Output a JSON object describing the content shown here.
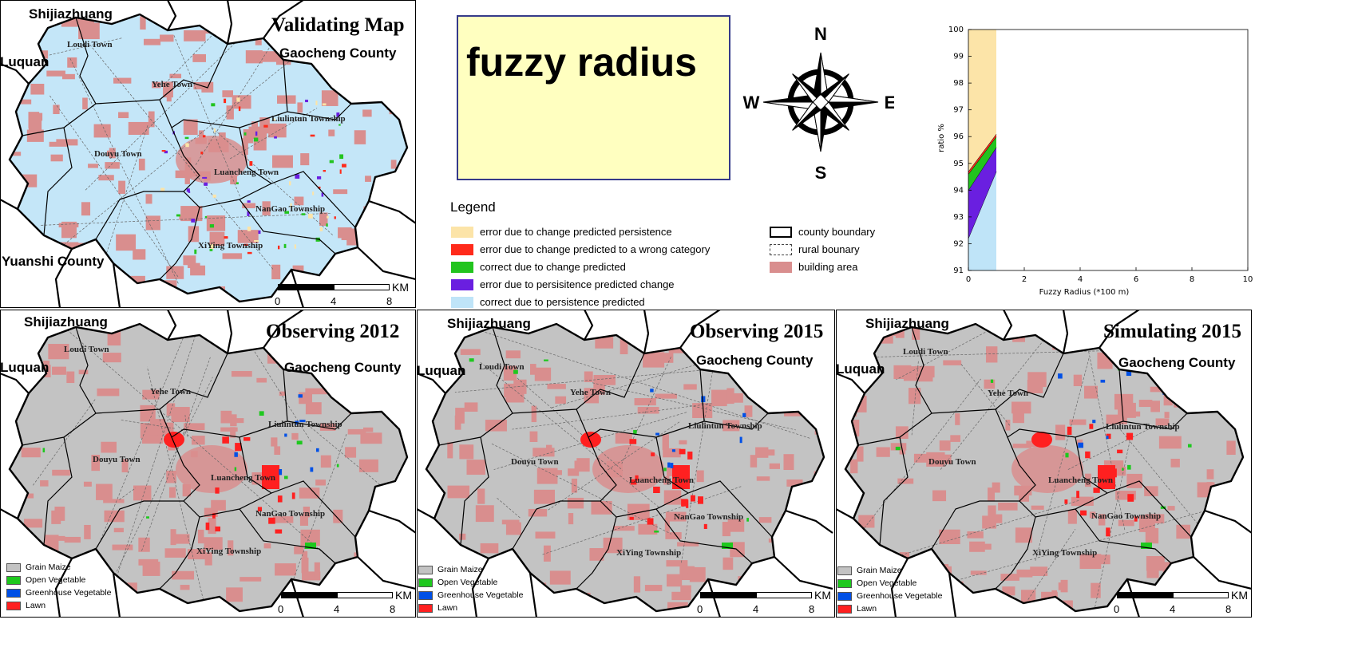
{
  "colors": {
    "persistence_light": "#c4e6f8",
    "grain_gray": "#c3c3c3",
    "building": "#d98e8e",
    "error_persistence_pred": "#fce4a8",
    "error_wrong_category": "#ff2a1a",
    "correct_change": "#22c41e",
    "error_persistence_change": "#6a1fe0",
    "correct_persistence": "#bfe4f8",
    "open_vegetable": "#1ec81e",
    "greenhouse_vegetable": "#0050e6",
    "lawn": "#ff2020"
  },
  "panels": [
    {
      "id": "validating",
      "title": "Validating Map",
      "subtitle": "Gaocheng County",
      "places": [
        "Shijiazhuang",
        "Luquan",
        "Yuanshi County"
      ],
      "towns": [
        "Loudi Town",
        "Yehe Town",
        "Liulintun Township",
        "Douyu Town",
        "Luancheng Town",
        "NanGao Township",
        "XiYing Township"
      ],
      "scale": {
        "ticks": [
          "0",
          "4",
          "8"
        ],
        "unit": "KM"
      }
    },
    {
      "id": "obs2012",
      "title": "Observing 2012",
      "subtitle": "Gaocheng County",
      "places": [
        "Shijiazhuang",
        "Luquan"
      ],
      "towns": [
        "Loudi Town",
        "Yehe Town",
        "Liulintun Township",
        "Douyu Town",
        "Luancheng Town",
        "NanGao Township",
        "XiYing Township"
      ],
      "scale": {
        "ticks": [
          "0",
          "4",
          "8"
        ],
        "unit": "KM"
      },
      "legend": [
        "Grain Maize",
        "Open Vegetable",
        "Greenhouse Vegetable",
        "Lawn"
      ]
    },
    {
      "id": "obs2015",
      "title": "Observing 2015",
      "subtitle": "Gaocheng County",
      "places": [
        "Shijiazhuang",
        "Luquan"
      ],
      "towns": [
        "Loudi Town",
        "Yehe Town",
        "Liulintun Township",
        "Douyu Town",
        "Luancheng Town",
        "NanGao Township",
        "XiYing Township"
      ],
      "scale": {
        "ticks": [
          "0",
          "4",
          "8"
        ],
        "unit": "KM"
      },
      "legend": [
        "Grain Maize",
        "Open Vegetable",
        "Greenhouse Vegetable",
        "Lawn"
      ]
    },
    {
      "id": "sim2015",
      "title": "Simulating 2015",
      "subtitle": "Gaocheng County",
      "places": [
        "Shijiazhuang",
        "Luquan"
      ],
      "towns": [
        "Loudi Town",
        "Yehe Town",
        "Liulintun Township",
        "Douyu Town",
        "Luancheng Town",
        "NanGao Township",
        "XiYing Township"
      ],
      "scale": {
        "ticks": [
          "0",
          "4",
          "8"
        ],
        "unit": "KM"
      },
      "legend": [
        "Grain Maize",
        "Open Vegetable",
        "Greenhouse Vegetable",
        "Lawn"
      ]
    }
  ],
  "fuzzy_box": {
    "text": "fuzzy radius"
  },
  "compass": {
    "n": "N",
    "s": "S",
    "e": "E",
    "w": "W"
  },
  "legend": {
    "title": "Legend",
    "items": [
      "error due to change predicted persistence",
      "error due to change predicted to a wrong category",
      "correct due to change predicted",
      "error due to persisitence predicted change",
      "correct due to persistence predicted"
    ],
    "boundary_items": [
      "county boundary",
      "rural bounary",
      "building area"
    ]
  },
  "chart_data": {
    "type": "area",
    "xlabel": "Fuzzy Radius (*100 m)",
    "ylabel": "ratio %",
    "xlim": [
      0,
      10
    ],
    "ylim": [
      91,
      100
    ],
    "xticks": [
      "0",
      "2",
      "4",
      "6",
      "8",
      "10"
    ],
    "yticks": [
      "91",
      "92",
      "93",
      "94",
      "95",
      "96",
      "97",
      "98",
      "99",
      "100"
    ],
    "x": [
      0,
      1
    ],
    "series": [
      {
        "name": "correct due to persistence predicted",
        "values": [
          92.2,
          94.7
        ]
      },
      {
        "name": "error due to persisitence predicted change",
        "values": [
          94.0,
          95.6
        ]
      },
      {
        "name": "correct due to change predicted",
        "values": [
          94.6,
          96.0
        ]
      },
      {
        "name": "error due to change predicted to a wrong category",
        "values": [
          94.7,
          96.1
        ]
      },
      {
        "name": "error due to change predicted persistence",
        "values": [
          100,
          100
        ]
      }
    ]
  }
}
